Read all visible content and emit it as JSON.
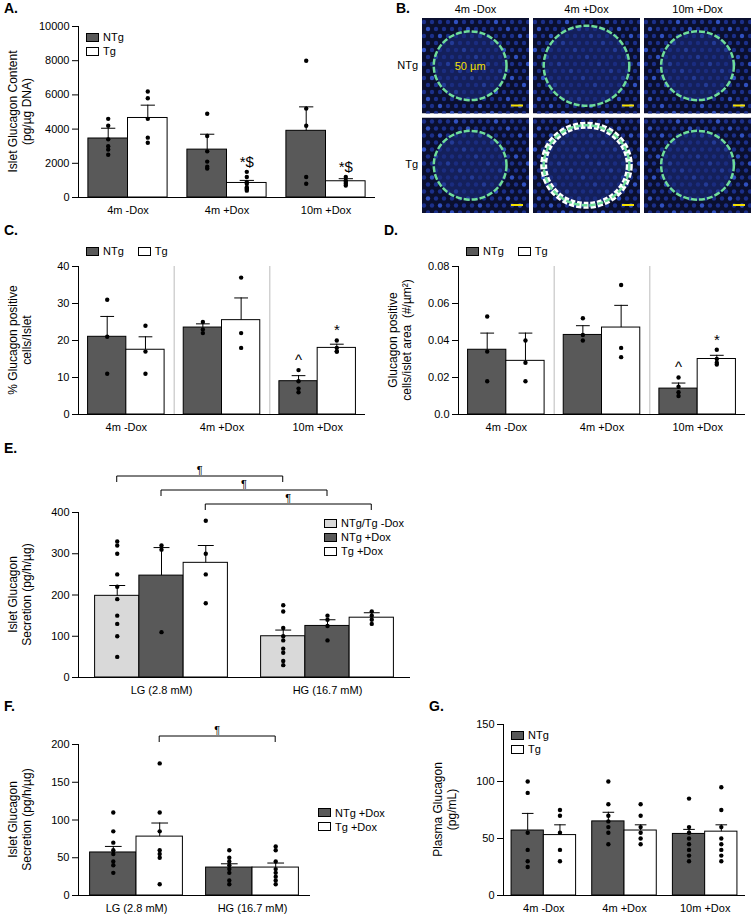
{
  "chart_data": [
    {
      "panel": "A.",
      "type": "bar",
      "y_label": [
        "Islet Glucagon Content",
        "(pg/µg DNA)"
      ],
      "categories": [
        "4m -Dox",
        "4m +Dox",
        "10m +Dox"
      ],
      "series": [
        {
          "name": "NTg",
          "color": "#595959",
          "values": [
            3450,
            2800,
            3900
          ],
          "errors": [
            600,
            900,
            1400
          ],
          "points": [
            [
              4600,
              4200,
              3400,
              2800,
              2500,
              3000
            ],
            [
              4900,
              3600,
              2700,
              2100,
              1800,
              1700
            ],
            [
              8000,
              5200,
              4200,
              1200,
              800
            ]
          ]
        },
        {
          "name": "Tg",
          "color": "#ffffff",
          "values": [
            4650,
            850,
            950
          ],
          "errors": [
            750,
            150,
            150
          ],
          "points": [
            [
              6200,
              5800,
              4600,
              3500,
              3200
            ],
            [
              1500,
              1200,
              900,
              800,
              600,
              500,
              500,
              400
            ],
            [
              1200,
              1000,
              900,
              800,
              700
            ]
          ]
        }
      ],
      "ylim": [
        0,
        10000
      ],
      "yticks": [
        0,
        2000,
        4000,
        6000,
        8000,
        10000
      ],
      "legend": "top-left",
      "annotations": [
        {
          "category": "4m +Dox",
          "series": "Tg",
          "text": "*$"
        },
        {
          "category": "10m +Dox",
          "series": "Tg",
          "text": "*$"
        }
      ]
    },
    {
      "panel": "B.",
      "type": "image_grid",
      "columns": [
        "4m -Dox",
        "4m +Dox",
        "10m +Dox"
      ],
      "rows": [
        "NTg",
        "Tg"
      ],
      "scale_bar": "50 µm"
    },
    {
      "panel": "C.",
      "type": "bar",
      "y_label": [
        "% Glucagon positive",
        "cells/Islet"
      ],
      "categories": [
        "4m -Dox",
        "4m +Dox",
        "10m +Dox"
      ],
      "series": [
        {
          "name": "NTg",
          "color": "#595959",
          "values": [
            21,
            23.5,
            9
          ],
          "errors": [
            5.5,
            1,
            1.5
          ],
          "points": [
            [
              31,
              21,
              11
            ],
            [
              25,
              23,
              22
            ],
            [
              12,
              9,
              7,
              6
            ]
          ]
        },
        {
          "name": "Tg",
          "color": "#ffffff",
          "values": [
            17.5,
            25.5,
            18
          ],
          "errors": [
            3.5,
            6,
            1
          ],
          "points": [
            [
              24,
              17,
              11
            ],
            [
              37,
              22,
              18
            ],
            [
              20,
              18,
              17,
              17
            ]
          ]
        }
      ],
      "ylim": [
        0,
        40
      ],
      "yticks": [
        0,
        10,
        20,
        30,
        40
      ],
      "legend": "top-left",
      "annotations": [
        {
          "category": "10m +Dox",
          "series": "NTg",
          "text": "^"
        },
        {
          "category": "10m +Dox",
          "series": "Tg",
          "text": "*"
        }
      ]
    },
    {
      "panel": "D.",
      "type": "bar",
      "y_label": [
        "Glucagon positive",
        "cells/islet area  (#/µm²)"
      ],
      "categories": [
        "4m -Dox",
        "4m +Dox",
        "10m +Dox"
      ],
      "series": [
        {
          "name": "NTg",
          "color": "#595959",
          "values": [
            0.035,
            0.043,
            0.014
          ],
          "errors": [
            0.009,
            0.005,
            0.003
          ],
          "points": [
            [
              0.053,
              0.034,
              0.018
            ],
            [
              0.052,
              0.043,
              0.04
            ],
            [
              0.02,
              0.015,
              0.012,
              0.01
            ]
          ]
        },
        {
          "name": "Tg",
          "color": "#ffffff",
          "values": [
            0.029,
            0.047,
            0.03
          ],
          "errors": [
            0.015,
            0.012,
            0.002
          ],
          "points": [
            [
              0.04,
              0.028,
              0.018
            ],
            [
              0.07,
              0.036,
              0.031
            ],
            [
              0.035,
              0.03,
              0.028,
              0.027
            ]
          ]
        }
      ],
      "ylim": [
        0,
        0.08
      ],
      "yticks": [
        {
          "value": 0,
          "label": "0.0"
        },
        0.02,
        0.04,
        0.06,
        0.08
      ],
      "legend": "top-left",
      "annotations": [
        {
          "category": "10m +Dox",
          "series": "NTg",
          "text": "^"
        },
        {
          "category": "10m +Dox",
          "series": "Tg",
          "text": "*"
        }
      ]
    },
    {
      "panel": "E.",
      "type": "bar",
      "y_label": [
        "Islet Glucagon",
        "Secretion (pg/h/µg)"
      ],
      "categories": [
        "LG (2.8 mM)",
        "HG (16.7 mM)"
      ],
      "series": [
        {
          "name": "NTg/Tg -Dox",
          "color": "#d9d9d9",
          "values": [
            198,
            100
          ],
          "errors": [
            25,
            15
          ],
          "points": [
            [
              330,
              320,
              300,
              250,
              220,
              190,
              150,
              130,
              100,
              50
            ],
            [
              175,
              160,
              120,
              100,
              90,
              70,
              60,
              40,
              30
            ]
          ]
        },
        {
          "name": "NTg +Dox",
          "color": "#595959",
          "values": [
            247,
            125
          ],
          "errors": [
            68,
            15
          ],
          "points": [
            [
              320,
              310,
              110
            ],
            [
              150,
              140,
              125,
              90
            ]
          ]
        },
        {
          "name": "Tg +Dox",
          "color": "#ffffff",
          "values": [
            278,
            145
          ],
          "errors": [
            42,
            12
          ],
          "points": [
            [
              380,
              300,
              250,
              180
            ],
            [
              160,
              150,
              140,
              130
            ]
          ]
        }
      ],
      "ylim": [
        0,
        400
      ],
      "yticks": [
        0,
        100,
        200,
        300,
        400
      ],
      "legend": "top-right",
      "brackets": [
        {
          "from": {
            "category": "LG (2.8 mM)",
            "series": "NTg/Tg -Dox"
          },
          "to": {
            "category": "HG (16.7 mM)",
            "series": "NTg/Tg -Dox"
          },
          "text": "¶"
        },
        {
          "from": {
            "category": "LG (2.8 mM)",
            "series": "NTg +Dox"
          },
          "to": {
            "category": "HG (16.7 mM)",
            "series": "NTg +Dox"
          },
          "text": "¶"
        },
        {
          "from": {
            "category": "LG (2.8 mM)",
            "series": "Tg +Dox"
          },
          "to": {
            "category": "HG (16.7 mM)",
            "series": "Tg +Dox"
          },
          "text": "¶"
        }
      ]
    },
    {
      "panel": "F.",
      "type": "bar",
      "y_label": [
        "Islet Glucagon",
        "Secretion (pg/h/µg)"
      ],
      "categories": [
        "LG (2.8 mM)",
        "HG (16.7 mM)"
      ],
      "series": [
        {
          "name": "NTg +Dox",
          "color": "#595959",
          "values": [
            57,
            37
          ],
          "errors": [
            8,
            5
          ],
          "points": [
            [
              110,
              85,
              70,
              60,
              55,
              45,
              40,
              30
            ],
            [
              60,
              50,
              45,
              40,
              35,
              30,
              20,
              15
            ]
          ]
        },
        {
          "name": "Tg +Dox",
          "color": "#ffffff",
          "values": [
            78,
            37
          ],
          "errors": [
            18,
            6
          ],
          "points": [
            [
              175,
              110,
              85,
              60,
              55,
              50,
              15
            ],
            [
              65,
              60,
              45,
              35,
              30,
              25,
              20,
              15
            ]
          ]
        }
      ],
      "ylim": [
        0,
        200
      ],
      "yticks": [
        0,
        50,
        100,
        150,
        200
      ],
      "legend": "right",
      "brackets": [
        {
          "from": {
            "category": "LG (2.8 mM)",
            "series": "Tg +Dox"
          },
          "to": {
            "category": "HG (16.7 mM)",
            "series": "Tg +Dox"
          },
          "text": "¶"
        }
      ]
    },
    {
      "panel": "G.",
      "type": "bar",
      "y_label": [
        "Plasma Glucagon",
        "(pg/mL)"
      ],
      "categories": [
        "4m -Dox",
        "4m +Dox",
        "10m +Dox"
      ],
      "series": [
        {
          "name": "NTg",
          "color": "#595959",
          "values": [
            57,
            65,
            54
          ],
          "errors": [
            15,
            8,
            4
          ],
          "points": [
            [
              100,
              90,
              55,
              40,
              25,
              30
            ],
            [
              100,
              80,
              70,
              65,
              60,
              55,
              45
            ],
            [
              85,
              60,
              55,
              50,
              45,
              40,
              35,
              30
            ]
          ]
        },
        {
          "name": "Tg",
          "color": "#ffffff",
          "values": [
            53,
            57,
            56
          ],
          "errors": [
            9,
            5,
            6
          ],
          "points": [
            [
              75,
              70,
              55,
              40,
              30
            ],
            [
              80,
              70,
              60,
              55,
              50,
              45
            ],
            [
              95,
              75,
              60,
              50,
              45,
              40,
              35,
              30
            ]
          ]
        }
      ],
      "ylim": [
        0,
        150
      ],
      "yticks": [
        0,
        50,
        100,
        150
      ],
      "legend": "top-left"
    }
  ]
}
